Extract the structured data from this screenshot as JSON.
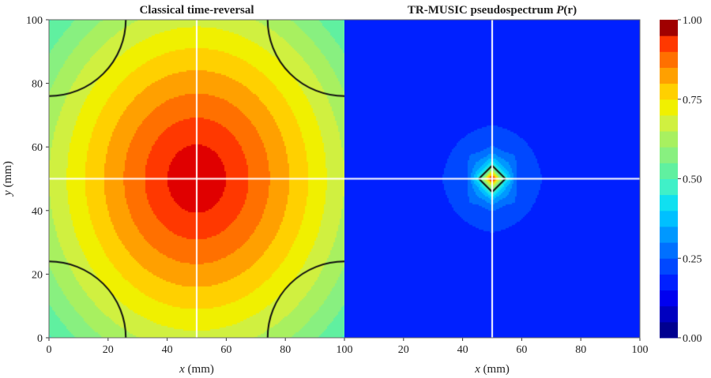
{
  "chart_data": {
    "type": "heatmap",
    "style": "filled-contour",
    "panels": [
      {
        "title": "Classical time-reversal",
        "xlabel": "x (mm)",
        "ylabel": "y (mm)",
        "xlim": [
          0,
          100
        ],
        "ylim": [
          0,
          100
        ],
        "crosshair": {
          "x": 50,
          "y": 50
        },
        "peak": {
          "x": 50,
          "y": 50,
          "value": 1.0
        }
      },
      {
        "title": "TR-MUSIC pseudospectrum P(r)",
        "title_main": "TR-MUSIC pseudospectrum ",
        "title_italic": "P",
        "title_tail": "(r)",
        "xlabel": "x (mm)",
        "xlim": [
          0,
          100
        ],
        "ylim": [
          0,
          100
        ],
        "crosshair": {
          "x": 50,
          "y": 50
        },
        "peak": {
          "x": 50,
          "y": 50,
          "value": 1.0
        }
      }
    ],
    "xticks": [
      "0",
      "20",
      "40",
      "60",
      "80",
      "100"
    ],
    "xticks_right": [
      "20",
      "40",
      "60",
      "80",
      "100"
    ],
    "yticks": [
      "0",
      "20",
      "40",
      "60",
      "80",
      "100"
    ],
    "xlabel_var": "x",
    "xlabel_unit": " (mm)",
    "ylabel_var": "y",
    "ylabel_unit": " (mm)",
    "colorbar": {
      "range": [
        0,
        1
      ],
      "levels": 20,
      "ticks": [
        "0.00",
        "0.25",
        "0.50",
        "0.75",
        "1.00"
      ],
      "colors": [
        "#000090",
        "#0000c0",
        "#0000f0",
        "#0020ff",
        "#0048ff",
        "#0070ff",
        "#0098ff",
        "#00c0ff",
        "#10e0f0",
        "#40f0c8",
        "#60f0a0",
        "#88f080",
        "#a8f060",
        "#d0f040",
        "#f0f000",
        "#ffd000",
        "#ffa000",
        "#ff7000",
        "#ff3800",
        "#e00000",
        "#a00000"
      ]
    },
    "colormap": "jet"
  }
}
